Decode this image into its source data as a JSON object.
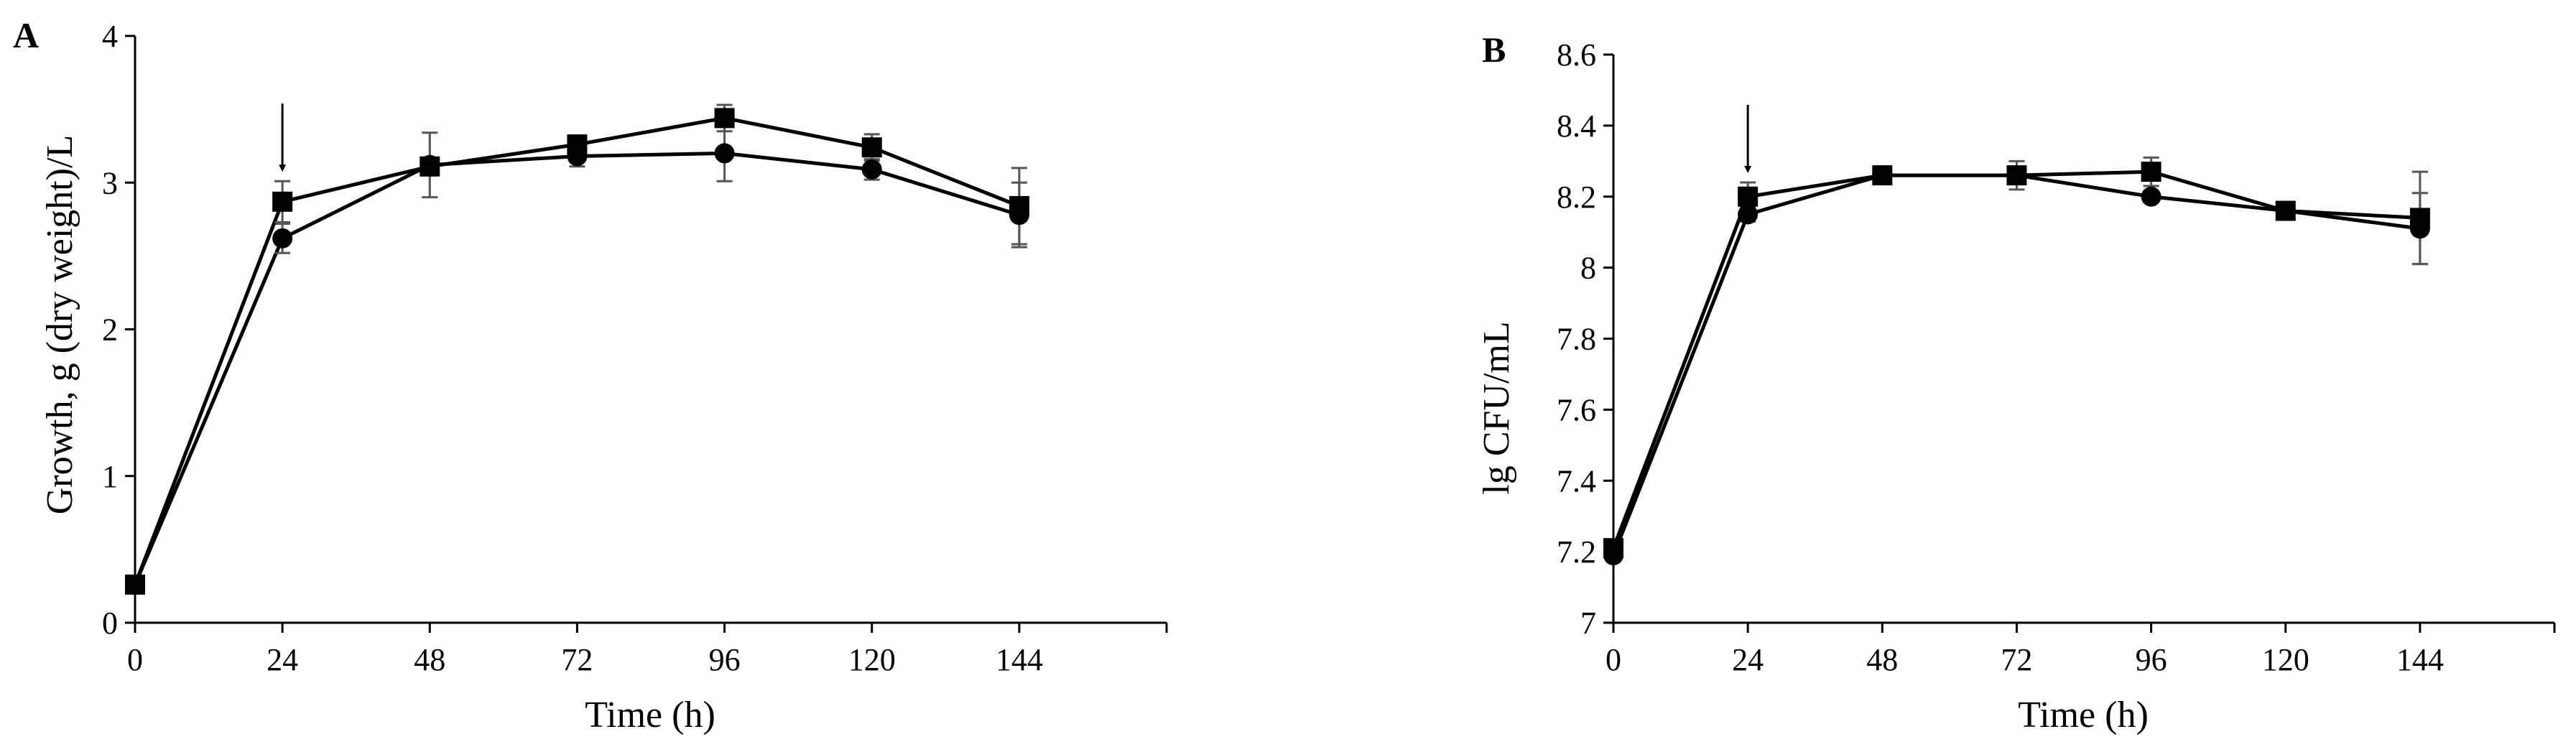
{
  "chart_data": [
    {
      "type": "line",
      "panel_label": "A",
      "xlabel": "Time (h)",
      "ylabel": "Growth, g (dry weight)/L",
      "x": [
        0,
        24,
        48,
        72,
        96,
        120,
        144
      ],
      "x_tick_labels": [
        "0",
        "24",
        "48",
        "72",
        "96",
        "120",
        "144"
      ],
      "xlim": [
        0,
        168
      ],
      "ylim": [
        0,
        4
      ],
      "y_ticks": [
        0,
        1,
        2,
        3,
        4
      ],
      "y_tick_labels": [
        "0",
        "1",
        "2",
        "3",
        "4"
      ],
      "grid": false,
      "legend": "none",
      "arrow_at_x": 24,
      "series": [
        {
          "marker": "circle",
          "values": [
            0.26,
            2.62,
            3.12,
            3.18,
            3.2,
            3.09,
            2.78
          ],
          "errors": [
            0.0,
            0.1,
            0.22,
            0.07,
            0.19,
            0.07,
            0.22
          ]
        },
        {
          "marker": "square",
          "values": [
            0.26,
            2.87,
            3.11,
            3.26,
            3.44,
            3.24,
            2.84
          ],
          "errors": [
            0.0,
            0.14,
            0.03,
            0.06,
            0.09,
            0.09,
            0.26
          ]
        }
      ]
    },
    {
      "type": "line",
      "panel_label": "B",
      "xlabel": "Time (h)",
      "ylabel": "lg CFU/mL",
      "x": [
        0,
        24,
        48,
        72,
        96,
        120,
        144
      ],
      "x_tick_labels": [
        "0",
        "24",
        "48",
        "72",
        "96",
        "120",
        "144"
      ],
      "xlim": [
        0,
        168
      ],
      "ylim": [
        7,
        8.6
      ],
      "y_ticks": [
        7,
        7.2,
        7.4,
        7.6,
        7.8,
        8,
        8.2,
        8.4,
        8.6
      ],
      "y_tick_labels": [
        "7",
        "7.2",
        "7.4",
        "7.6",
        "7.8",
        "8",
        "8.2",
        "8.4",
        "8.6"
      ],
      "grid": false,
      "legend": "none",
      "arrow_at_x": 24,
      "series": [
        {
          "marker": "circle",
          "values": [
            7.19,
            8.15,
            8.26,
            8.26,
            8.2,
            8.16,
            8.11
          ],
          "errors": [
            0.0,
            0.02,
            0.01,
            0.02,
            0.0,
            0.01,
            0.1
          ]
        },
        {
          "marker": "square",
          "values": [
            7.21,
            8.2,
            8.26,
            8.26,
            8.27,
            8.16,
            8.14
          ],
          "errors": [
            0.0,
            0.04,
            0.01,
            0.04,
            0.04,
            0.01,
            0.13
          ]
        }
      ]
    }
  ]
}
